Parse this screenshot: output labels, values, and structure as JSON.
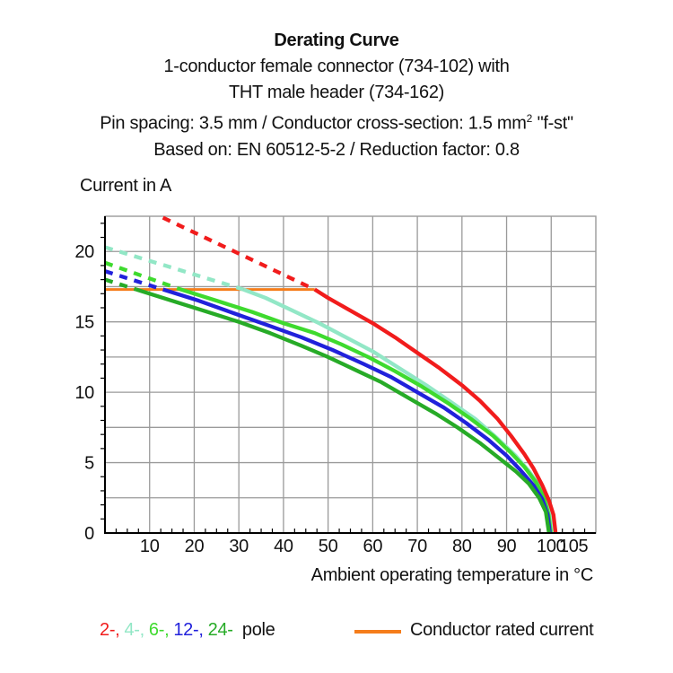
{
  "header": {
    "title": "Derating Curve",
    "subtitle1": "1-conductor female connector (734-102) with",
    "subtitle2": "THT male header (734-162)",
    "subtitle3_pre": "Pin spacing: 3.5 mm / Conductor cross-section: 1.5 mm",
    "subtitle3_sup": "2",
    "subtitle3_post": " \"f-st\"",
    "subtitle4": "Based on: EN 60512-5-2 / Reduction factor: 0.8"
  },
  "chart_data": {
    "type": "line",
    "title": "Derating Curve",
    "xlabel": "Ambient operating temperature in °C",
    "ylabel": "Current in A",
    "xlim": [
      0,
      110
    ],
    "ylim": [
      0,
      22.5
    ],
    "grid": true,
    "grid_color": "#9a9a9a",
    "axis_color": "#000000",
    "x_major_grid_step": 10,
    "y_major_grid_step": 2.5,
    "x_minor_tick_step": 2.5,
    "y_minor_tick_step": 1,
    "x_tick_labels": [
      10,
      20,
      30,
      40,
      50,
      60,
      70,
      80,
      90,
      100,
      105
    ],
    "y_tick_labels": [
      0,
      5,
      10,
      15,
      20
    ],
    "rated_current_line": {
      "y": 17.3,
      "x_start": 0,
      "x_end": 47,
      "color": "#f57d1b",
      "label": "Conductor rated current"
    },
    "series": [
      {
        "name": "4-pole",
        "legend_label": "4-,",
        "color": "#92e7c6",
        "dashed": [
          [
            0,
            20.3
          ],
          [
            31,
            17.3
          ]
        ],
        "solid": [
          [
            31,
            17.3
          ],
          [
            36,
            16.7
          ],
          [
            42,
            15.8
          ],
          [
            48,
            14.9
          ],
          [
            54,
            13.9
          ],
          [
            60,
            12.9
          ],
          [
            66,
            11.7
          ],
          [
            72,
            10.5
          ],
          [
            78,
            9.2
          ],
          [
            83,
            8.1
          ],
          [
            88,
            6.7
          ],
          [
            92,
            5.5
          ],
          [
            95,
            4.4
          ],
          [
            97,
            3.5
          ],
          [
            98.7,
            2.4
          ],
          [
            99.7,
            1.3
          ],
          [
            100.2,
            0
          ]
        ]
      },
      {
        "name": "6-pole",
        "legend_label": "6-,",
        "color": "#3eda2e",
        "dashed": [
          [
            0,
            19.2
          ],
          [
            17,
            17.3
          ]
        ],
        "solid": [
          [
            17,
            17.3
          ],
          [
            25,
            16.5
          ],
          [
            33,
            15.7
          ],
          [
            40,
            14.9
          ],
          [
            47,
            14.2
          ],
          [
            53,
            13.4
          ],
          [
            59,
            12.5
          ],
          [
            65,
            11.5
          ],
          [
            71,
            10.4
          ],
          [
            77,
            9.2
          ],
          [
            82,
            8.1
          ],
          [
            87,
            6.9
          ],
          [
            91,
            5.7
          ],
          [
            94,
            4.7
          ],
          [
            96.6,
            3.6
          ],
          [
            98.4,
            2.5
          ],
          [
            99.4,
            1.3
          ],
          [
            99.9,
            0
          ]
        ]
      },
      {
        "name": "12-pole",
        "legend_label": "12-,",
        "color": "#2121db",
        "dashed": [
          [
            0,
            18.6
          ],
          [
            13,
            17.3
          ]
        ],
        "solid": [
          [
            13,
            17.3
          ],
          [
            21,
            16.5
          ],
          [
            29,
            15.6
          ],
          [
            37,
            14.7
          ],
          [
            44,
            13.9
          ],
          [
            51,
            13.0
          ],
          [
            58,
            12.0
          ],
          [
            64,
            11.1
          ],
          [
            70,
            10.0
          ],
          [
            76,
            8.9
          ],
          [
            81,
            7.8
          ],
          [
            86,
            6.6
          ],
          [
            90,
            5.5
          ],
          [
            93,
            4.5
          ],
          [
            96,
            3.4
          ],
          [
            98,
            2.4
          ],
          [
            99.2,
            1.3
          ],
          [
            99.7,
            0
          ]
        ]
      },
      {
        "name": "24-pole",
        "legend_label": "24-",
        "color": "#27ab27",
        "dashed": [
          [
            0,
            18.0
          ],
          [
            7,
            17.3
          ]
        ],
        "solid": [
          [
            7,
            17.3
          ],
          [
            14,
            16.6
          ],
          [
            22,
            15.8
          ],
          [
            30,
            15.0
          ],
          [
            37,
            14.2
          ],
          [
            44,
            13.3
          ],
          [
            50,
            12.5
          ],
          [
            56,
            11.6
          ],
          [
            62,
            10.7
          ],
          [
            68,
            9.6
          ],
          [
            74,
            8.5
          ],
          [
            79,
            7.5
          ],
          [
            84,
            6.4
          ],
          [
            88,
            5.4
          ],
          [
            92,
            4.4
          ],
          [
            95,
            3.5
          ],
          [
            97.3,
            2.5
          ],
          [
            98.8,
            1.5
          ],
          [
            99.5,
            0
          ]
        ]
      },
      {
        "name": "2-pole",
        "legend_label": "2-,",
        "color": "#f11c1c",
        "dashed": [
          [
            13,
            22.4
          ],
          [
            47,
            17.3
          ]
        ],
        "solid": [
          [
            47,
            17.3
          ],
          [
            50,
            16.7
          ],
          [
            55,
            15.8
          ],
          [
            60,
            14.9
          ],
          [
            65,
            13.9
          ],
          [
            70,
            12.8
          ],
          [
            75,
            11.7
          ],
          [
            80,
            10.5
          ],
          [
            84,
            9.4
          ],
          [
            88,
            8.1
          ],
          [
            91,
            6.9
          ],
          [
            94,
            5.6
          ],
          [
            96,
            4.6
          ],
          [
            98,
            3.4
          ],
          [
            99.5,
            2.3
          ],
          [
            100.5,
            1.3
          ],
          [
            101,
            0
          ]
        ]
      }
    ],
    "legend_series_order": [
      "2-pole",
      "4-pole",
      "6-pole",
      "12-pole",
      "24-pole"
    ]
  },
  "legend": {
    "pole_suffix": " pole",
    "rated_label": "Conductor rated current"
  }
}
